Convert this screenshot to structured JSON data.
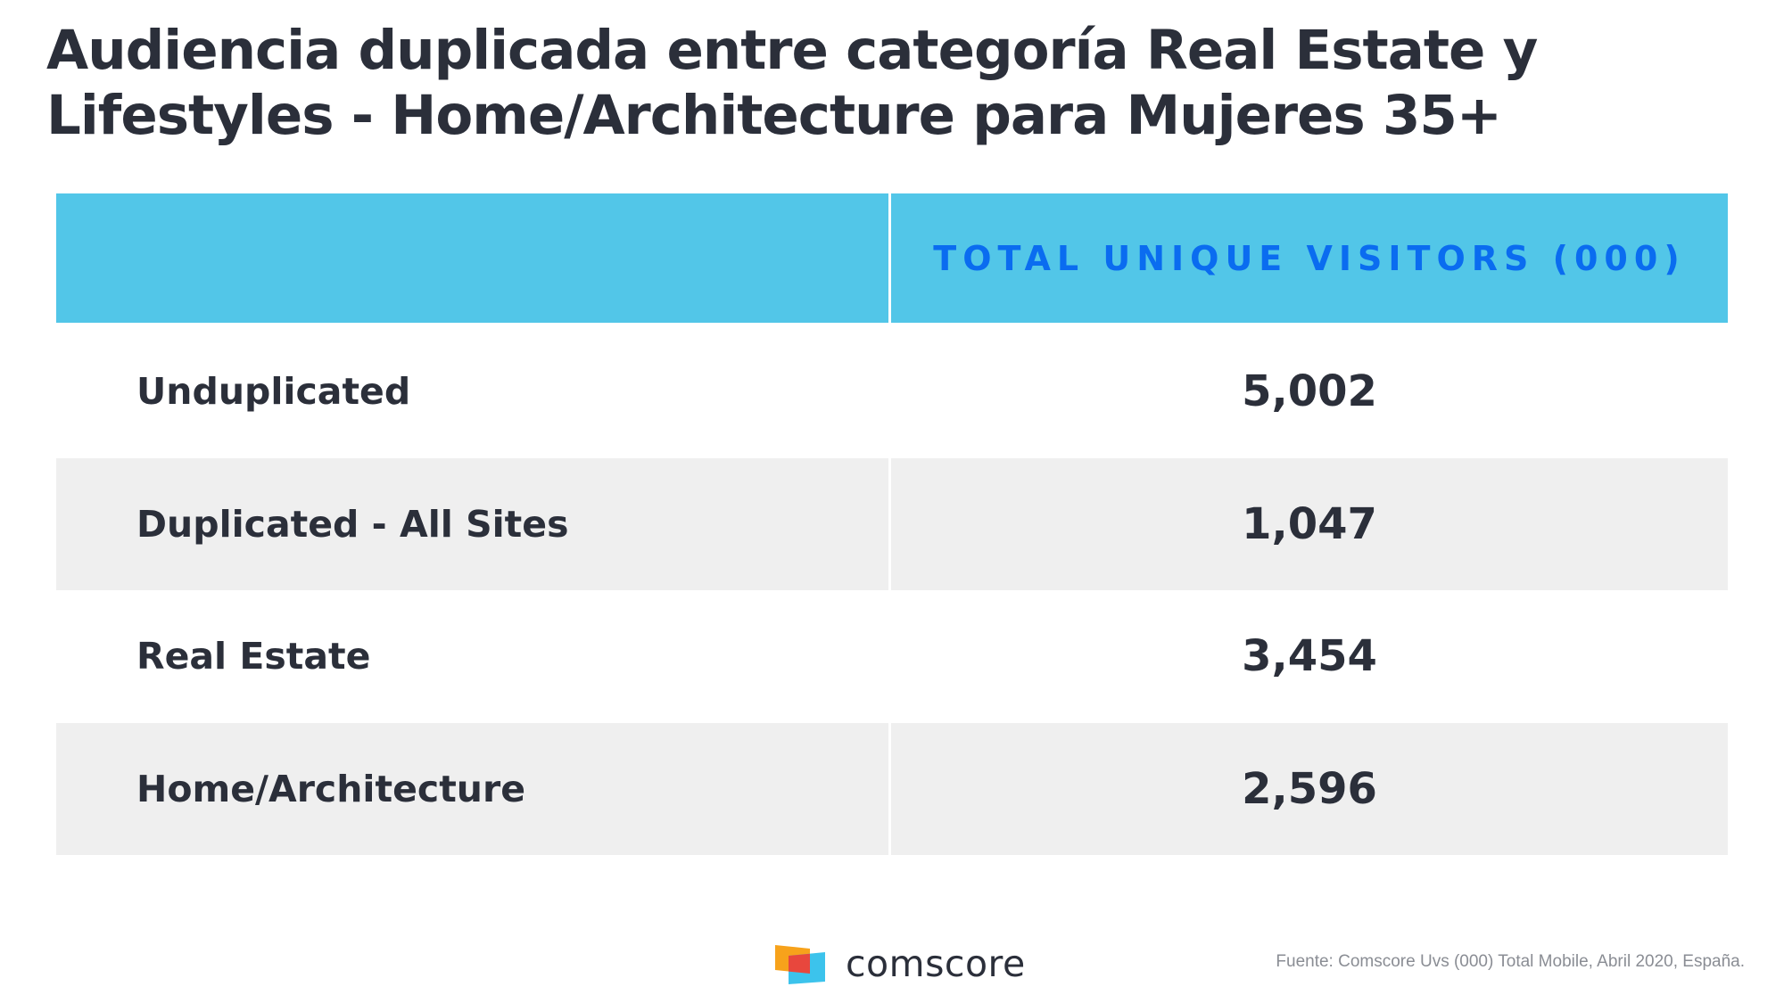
{
  "title": {
    "line1": "Audiencia duplicada entre categoría Real Estate y",
    "line2": "Lifestyles - Home/Architecture para Mujeres 35+"
  },
  "table": {
    "header": {
      "left": "",
      "right": "TOTAL UNIQUE VISITORS (000)"
    },
    "rows": [
      {
        "label": "Unduplicated",
        "value": "5,002"
      },
      {
        "label": "Duplicated - All Sites",
        "value": "1,047"
      },
      {
        "label": "Real Estate",
        "value": "3,454"
      },
      {
        "label": "Home/Architecture",
        "value": "2,596"
      }
    ]
  },
  "chart_data": {
    "type": "table",
    "columns": [
      "",
      "TOTAL UNIQUE VISITORS (000)"
    ],
    "rows": [
      [
        "Unduplicated",
        5002
      ],
      [
        "Duplicated - All Sites",
        1047
      ],
      [
        "Real Estate",
        3454
      ],
      [
        "Home/Architecture",
        2596
      ]
    ]
  },
  "branding": {
    "logo_text": "comscore",
    "logo_icon": "comscore-logo-icon"
  },
  "footer": {
    "source": "Fuente: Comscore Uvs  (000) Total Mobile, Abril 2020, España."
  },
  "colors": {
    "header_bg": "#52c6e8",
    "header_text": "#0a6cf0",
    "shaded_row": "#efefef",
    "text": "#2b2f3a"
  }
}
